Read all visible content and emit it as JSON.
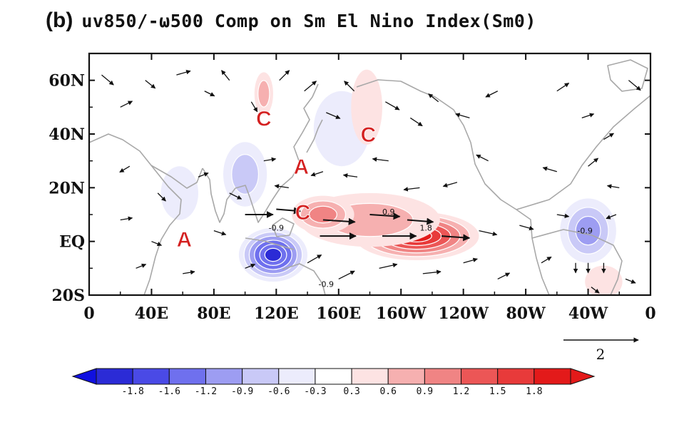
{
  "figure": {
    "panel_label": "(b)",
    "title": "uv850/-ω500 Comp on Sm El Nino Index(Sm0)"
  },
  "map": {
    "y_ticks": [
      {
        "lat": 60,
        "label": "60N"
      },
      {
        "lat": 40,
        "label": "40N"
      },
      {
        "lat": 20,
        "label": "20N"
      },
      {
        "lat": 0,
        "label": "EQ"
      },
      {
        "lat": -20,
        "label": "20S"
      }
    ],
    "x_ticks": [
      {
        "lon": 0,
        "label": "0"
      },
      {
        "lon": 40,
        "label": "40E"
      },
      {
        "lon": 80,
        "label": "80E"
      },
      {
        "lon": 120,
        "label": "120E"
      },
      {
        "lon": 160,
        "label": "160E"
      },
      {
        "lon": 200,
        "label": "160W"
      },
      {
        "lon": 240,
        "label": "120W"
      },
      {
        "lon": 280,
        "label": "80W"
      },
      {
        "lon": 320,
        "label": "40W"
      },
      {
        "lon": 360,
        "label": "0"
      }
    ],
    "lon_range": [
      0,
      360
    ],
    "lat_range": [
      -20,
      70
    ],
    "contour_labels": [
      {
        "lon": 120,
        "lat": 4,
        "text": "-0.9"
      },
      {
        "lon": 192,
        "lat": 10,
        "text": "0.9"
      },
      {
        "lon": 216,
        "lat": 4,
        "text": "1.8"
      },
      {
        "lon": 152,
        "lat": -17,
        "text": "-0.9"
      },
      {
        "lon": 318,
        "lat": 3,
        "text": "-0.9"
      }
    ],
    "annotations": [
      {
        "lon": 61,
        "lat": 1,
        "text": "A"
      },
      {
        "lon": 112,
        "lat": 46,
        "text": "C"
      },
      {
        "lon": 136,
        "lat": 28,
        "text": "A"
      },
      {
        "lon": 179,
        "lat": 40,
        "text": "C"
      },
      {
        "lon": 137,
        "lat": 11,
        "text": "C"
      }
    ],
    "reference_vector": {
      "value": "2"
    }
  },
  "colorbar": {
    "labels": [
      "-1.8",
      "-1.6",
      "-1.2",
      "-0.9",
      "-0.6",
      "-0.3",
      "0.3",
      "0.6",
      "0.9",
      "1.2",
      "1.5",
      "1.8"
    ],
    "colors": [
      "#2b2bd6",
      "#4a4ae6",
      "#6f70ee",
      "#9d9df2",
      "#c9c9f7",
      "#ececfc",
      "#ffffff",
      "#fde3e3",
      "#f6b0b0",
      "#f08484",
      "#ec5656",
      "#e83a3a",
      "#e31a1a"
    ],
    "end_colors": {
      "low": "#1010e0",
      "high": "#e31a1a"
    }
  },
  "field": {
    "anomalies": [
      {
        "lon": 210,
        "lat": 2,
        "rx": 40,
        "ry": 9,
        "level": 1.8
      },
      {
        "lon": 180,
        "lat": 8,
        "rx": 45,
        "ry": 10,
        "level": 0.6
      },
      {
        "lon": 150,
        "lat": 10,
        "rx": 20,
        "ry": 7,
        "level": 0.9
      },
      {
        "lon": 118,
        "lat": -5,
        "rx": 22,
        "ry": 10,
        "level": -1.8
      },
      {
        "lon": 100,
        "lat": 25,
        "rx": 14,
        "ry": 12,
        "level": -0.6
      },
      {
        "lon": 162,
        "lat": 42,
        "rx": 18,
        "ry": 14,
        "level": -0.3
      },
      {
        "lon": 112,
        "lat": 55,
        "rx": 6,
        "ry": 8,
        "level": 0.6
      },
      {
        "lon": 178,
        "lat": 50,
        "rx": 10,
        "ry": 14,
        "level": 0.3
      },
      {
        "lon": 320,
        "lat": 4,
        "rx": 18,
        "ry": 12,
        "level": -0.9
      },
      {
        "lon": 58,
        "lat": 18,
        "rx": 12,
        "ry": 10,
        "level": -0.3
      },
      {
        "lon": 330,
        "lat": -15,
        "rx": 12,
        "ry": 6,
        "level": 0.3
      }
    ],
    "winds": [
      {
        "lon": 8,
        "lat": 62,
        "u": 1.2,
        "v": -1.0
      },
      {
        "lon": 20,
        "lat": 50,
        "u": 1.2,
        "v": 0.6
      },
      {
        "lon": 36,
        "lat": 60,
        "u": 1.0,
        "v": -0.8
      },
      {
        "lon": 56,
        "lat": 62,
        "u": 1.4,
        "v": 0.4
      },
      {
        "lon": 74,
        "lat": 56,
        "u": 1.0,
        "v": -0.5
      },
      {
        "lon": 90,
        "lat": 60,
        "u": -0.8,
        "v": 1.0
      },
      {
        "lon": 104,
        "lat": 52,
        "u": 0.6,
        "v": -1.0
      },
      {
        "lon": 122,
        "lat": 60,
        "u": 1.0,
        "v": 1.0
      },
      {
        "lon": 138,
        "lat": 56,
        "u": 1.2,
        "v": 1.0
      },
      {
        "lon": 152,
        "lat": 48,
        "u": 1.4,
        "v": -0.6
      },
      {
        "lon": 170,
        "lat": 56,
        "u": -1.0,
        "v": 1.0
      },
      {
        "lon": 190,
        "lat": 52,
        "u": 1.4,
        "v": -0.8
      },
      {
        "lon": 206,
        "lat": 46,
        "u": 1.2,
        "v": -0.8
      },
      {
        "lon": 224,
        "lat": 52,
        "u": -1.0,
        "v": 0.8
      },
      {
        "lon": 244,
        "lat": 46,
        "u": -1.4,
        "v": 0.4
      },
      {
        "lon": 262,
        "lat": 56,
        "u": -1.2,
        "v": -0.6
      },
      {
        "lon": 300,
        "lat": 56,
        "u": 1.2,
        "v": 0.8
      },
      {
        "lon": 316,
        "lat": 46,
        "u": 1.2,
        "v": 0.4
      },
      {
        "lon": 330,
        "lat": 38,
        "u": 1.0,
        "v": 0.6
      },
      {
        "lon": 346,
        "lat": 60,
        "u": 1.2,
        "v": -1.0
      },
      {
        "lon": 26,
        "lat": 28,
        "u": -1.0,
        "v": -0.6
      },
      {
        "lon": 44,
        "lat": 18,
        "u": 0.8,
        "v": -0.8
      },
      {
        "lon": 70,
        "lat": 24,
        "u": 1.0,
        "v": 0.4
      },
      {
        "lon": 90,
        "lat": 18,
        "u": 1.2,
        "v": -0.6
      },
      {
        "lon": 112,
        "lat": 30,
        "u": 1.2,
        "v": 0.2
      },
      {
        "lon": 128,
        "lat": 20,
        "u": -1.4,
        "v": 0.2
      },
      {
        "lon": 150,
        "lat": 26,
        "u": -1.2,
        "v": -0.4
      },
      {
        "lon": 172,
        "lat": 24,
        "u": -1.4,
        "v": 0.2
      },
      {
        "lon": 192,
        "lat": 30,
        "u": -1.6,
        "v": 0.2
      },
      {
        "lon": 212,
        "lat": 20,
        "u": -1.6,
        "v": -0.2
      },
      {
        "lon": 236,
        "lat": 22,
        "u": -1.4,
        "v": -0.4
      },
      {
        "lon": 256,
        "lat": 30,
        "u": -1.2,
        "v": 0.6
      },
      {
        "lon": 300,
        "lat": 26,
        "u": -1.4,
        "v": 0.4
      },
      {
        "lon": 320,
        "lat": 28,
        "u": 1.0,
        "v": 0.8
      },
      {
        "lon": 340,
        "lat": 20,
        "u": -1.2,
        "v": 0.2
      },
      {
        "lon": 20,
        "lat": 8,
        "u": 1.2,
        "v": 0.2
      },
      {
        "lon": 40,
        "lat": 0,
        "u": 1.0,
        "v": -0.4
      },
      {
        "lon": 80,
        "lat": 4,
        "u": 1.2,
        "v": -0.4
      },
      {
        "lon": 100,
        "lat": 10,
        "u": 2.8,
        "v": 0.0
      },
      {
        "lon": 120,
        "lat": 12,
        "u": 2.4,
        "v": -0.2
      },
      {
        "lon": 150,
        "lat": 8,
        "u": 3.2,
        "v": -0.2
      },
      {
        "lon": 180,
        "lat": 10,
        "u": 3.0,
        "v": -0.2
      },
      {
        "lon": 204,
        "lat": 8,
        "u": 2.6,
        "v": -0.2
      },
      {
        "lon": 148,
        "lat": 2,
        "u": 3.6,
        "v": 0.0
      },
      {
        "lon": 188,
        "lat": 2,
        "u": 3.4,
        "v": 0.0
      },
      {
        "lon": 226,
        "lat": 2,
        "u": 2.8,
        "v": -0.2
      },
      {
        "lon": 250,
        "lat": 4,
        "u": 1.8,
        "v": -0.4
      },
      {
        "lon": 276,
        "lat": 6,
        "u": 1.4,
        "v": -0.4
      },
      {
        "lon": 300,
        "lat": 10,
        "u": 1.2,
        "v": -0.2
      },
      {
        "lon": 338,
        "lat": 10,
        "u": -1.0,
        "v": -0.4
      },
      {
        "lon": 30,
        "lat": -10,
        "u": 1.0,
        "v": 0.4
      },
      {
        "lon": 60,
        "lat": -12,
        "u": 1.2,
        "v": 0.2
      },
      {
        "lon": 100,
        "lat": -10,
        "u": 1.0,
        "v": 0.4
      },
      {
        "lon": 140,
        "lat": -8,
        "u": 1.4,
        "v": 0.8
      },
      {
        "lon": 160,
        "lat": -14,
        "u": 1.6,
        "v": 0.8
      },
      {
        "lon": 186,
        "lat": -10,
        "u": 1.8,
        "v": 0.4
      },
      {
        "lon": 214,
        "lat": -12,
        "u": 1.8,
        "v": 0.2
      },
      {
        "lon": 240,
        "lat": -8,
        "u": 1.4,
        "v": 0.4
      },
      {
        "lon": 262,
        "lat": -14,
        "u": 1.2,
        "v": 0.6
      },
      {
        "lon": 290,
        "lat": -8,
        "u": 1.0,
        "v": 0.6
      },
      {
        "lon": 312,
        "lat": -8,
        "u": 0.0,
        "v": -1.0
      },
      {
        "lon": 320,
        "lat": -8,
        "u": 0.0,
        "v": -1.0
      },
      {
        "lon": 330,
        "lat": -8,
        "u": 0.0,
        "v": -1.0
      },
      {
        "lon": 322,
        "lat": -17,
        "u": 0.8,
        "v": -0.6
      },
      {
        "lon": 344,
        "lat": -14,
        "u": 1.0,
        "v": -0.4
      }
    ]
  }
}
